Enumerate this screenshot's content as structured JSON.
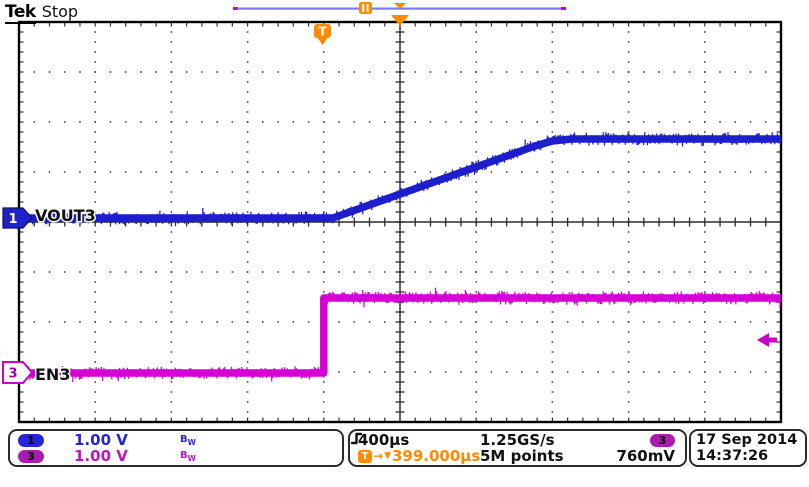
{
  "header": {
    "brand": "Tek",
    "status": "Stop"
  },
  "plot": {
    "ch1_number": "1",
    "ch1_label": "VOUT3",
    "ch3_number": "3",
    "ch3_label": "EN3",
    "trigger_flag": "T"
  },
  "status_bar": {
    "channels": [
      {
        "number": "1",
        "scale": "1.00 V",
        "bw_b": "B",
        "bw_w": "W",
        "color": "#2525d8"
      },
      {
        "number": "3",
        "scale": "1.00 V",
        "bw_b": "B",
        "bw_w": "W",
        "color": "#c313c3"
      }
    ],
    "horizontal": {
      "timebase": "400µs",
      "sample_rate": "1.25GS/s",
      "record_length": "5M points",
      "trigger_flag": "T",
      "delay_arrow": "→",
      "delay_marker": "▼",
      "delay": "399.000µs"
    },
    "trigger": {
      "source": "3",
      "level": "760mV",
      "slope": "rising"
    },
    "datetime": {
      "date": "17 Sep 2014",
      "time": "14:37:26"
    }
  },
  "colors": {
    "ch1_trace": "#1e1ecd",
    "ch3_trace": "#d400d4",
    "trigger_orange": "#ff8a00",
    "record_bar": "#7a7aff",
    "record_bar_tip": "#cc00cc"
  },
  "chart_data": {
    "type": "line",
    "x_axis": {
      "units": "time",
      "scale_per_div": "400µs",
      "divisions": 10,
      "trigger_position_div": 4.0,
      "expansion_point_div": 5.0,
      "sample_rate": "1.25GS/s",
      "record_length": "5M points"
    },
    "y_axis": {
      "divisions": 8
    },
    "series": [
      {
        "name": "VOUT3",
        "channel": 1,
        "color": "#1e1ecd",
        "volts_per_div": "1.00 V",
        "bandwidth_limit": true,
        "noise_halfwidth_div": 0.09,
        "points_div_volts": [
          [
            0,
            0.08
          ],
          [
            4.12,
            0.08
          ],
          [
            6.77,
            1.52
          ],
          [
            7.0,
            1.62
          ],
          [
            7.25,
            1.66
          ],
          [
            10,
            1.66
          ]
        ]
      },
      {
        "name": "EN3",
        "channel": 3,
        "color": "#d400d4",
        "volts_per_div": "1.00 V",
        "bandwidth_limit": true,
        "noise_halfwidth_div": 0.09,
        "points_div_volts": [
          [
            0,
            -3.02
          ],
          [
            4.0,
            -3.02
          ],
          [
            4.0,
            -1.52
          ],
          [
            10,
            -1.52
          ]
        ]
      }
    ],
    "trigger": {
      "source_channel": 3,
      "slope": "rising",
      "level": "760mV",
      "level_marker_div": -2.36,
      "delay_readout": "399.000µs"
    }
  }
}
